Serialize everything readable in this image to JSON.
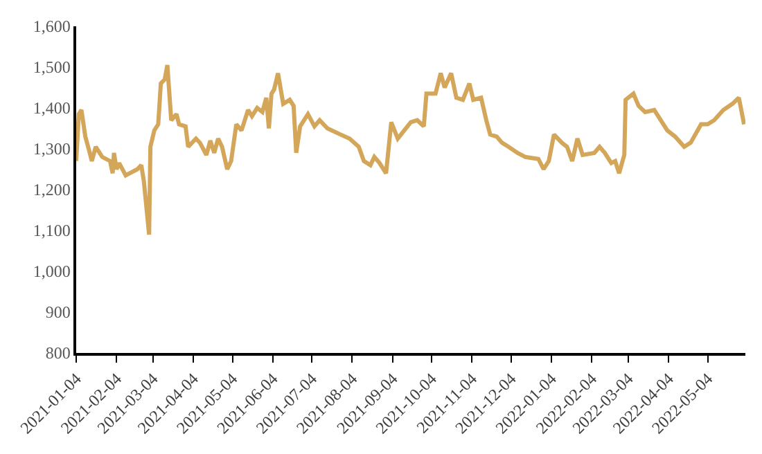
{
  "chart_data": {
    "type": "line",
    "x": [
      "2021-01-04",
      "2021-01-06",
      "2021-01-08",
      "2021-01-11",
      "2021-01-14",
      "2021-01-16",
      "2021-01-19",
      "2021-01-24",
      "2021-01-30",
      "2021-02-01",
      "2021-02-02",
      "2021-02-04",
      "2021-02-06",
      "2021-02-11",
      "2021-02-20",
      "2021-02-23",
      "2021-02-25",
      "2021-03-01",
      "2021-03-02",
      "2021-03-05",
      "2021-03-08",
      "2021-03-10",
      "2021-03-13",
      "2021-03-15",
      "2021-03-18",
      "2021-03-22",
      "2021-03-24",
      "2021-03-29",
      "2021-03-31",
      "2021-04-06",
      "2021-04-09",
      "2021-04-14",
      "2021-04-17",
      "2021-04-20",
      "2021-04-23",
      "2021-04-26",
      "2021-04-30",
      "2021-05-03",
      "2021-05-07",
      "2021-05-11",
      "2021-05-16",
      "2021-05-19",
      "2021-05-23",
      "2021-05-27",
      "2021-05-30",
      "2021-06-01",
      "2021-06-03",
      "2021-06-05",
      "2021-06-08",
      "2021-06-12",
      "2021-06-17",
      "2021-06-20",
      "2021-06-22",
      "2021-06-25",
      "2021-07-01",
      "2021-07-06",
      "2021-07-10",
      "2021-07-16",
      "2021-07-26",
      "2021-08-02",
      "2021-08-09",
      "2021-08-13",
      "2021-08-18",
      "2021-08-21",
      "2021-08-25",
      "2021-08-30",
      "2021-09-03",
      "2021-09-08",
      "2021-09-13",
      "2021-09-18",
      "2021-09-23",
      "2021-09-28",
      "2021-09-30",
      "2021-10-07",
      "2021-10-11",
      "2021-10-14",
      "2021-10-19",
      "2021-10-23",
      "2021-10-28",
      "2021-11-02",
      "2021-11-05",
      "2021-11-11",
      "2021-11-15",
      "2021-11-18",
      "2021-11-23",
      "2021-11-27",
      "2021-12-02",
      "2021-12-09",
      "2021-12-15",
      "2021-12-25",
      "2021-12-29",
      "2022-01-02",
      "2022-01-06",
      "2022-01-12",
      "2022-01-16",
      "2022-01-20",
      "2022-01-24",
      "2022-01-28",
      "2022-02-06",
      "2022-02-10",
      "2022-02-14",
      "2022-02-19",
      "2022-02-22",
      "2022-02-25",
      "2022-03-01",
      "2022-03-02",
      "2022-03-08",
      "2022-03-12",
      "2022-03-17",
      "2022-03-24",
      "2022-03-29",
      "2022-04-03",
      "2022-04-09",
      "2022-04-16",
      "2022-04-21",
      "2022-04-29",
      "2022-05-04",
      "2022-05-09",
      "2022-05-16",
      "2022-05-23",
      "2022-05-28",
      "2022-06-01"
    ],
    "series": [
      {
        "color": "#d4a65a",
        "values": [
          1270,
          1385,
          1395,
          1330,
          1295,
          1270,
          1305,
          1280,
          1270,
          1240,
          1290,
          1250,
          1265,
          1235,
          1250,
          1260,
          1220,
          1090,
          1305,
          1345,
          1360,
          1460,
          1470,
          1505,
          1370,
          1385,
          1360,
          1355,
          1305,
          1325,
          1315,
          1285,
          1320,
          1290,
          1325,
          1305,
          1250,
          1270,
          1360,
          1345,
          1395,
          1380,
          1400,
          1390,
          1425,
          1350,
          1435,
          1445,
          1485,
          1410,
          1420,
          1405,
          1290,
          1355,
          1385,
          1355,
          1370,
          1350,
          1335,
          1325,
          1305,
          1270,
          1260,
          1280,
          1265,
          1240,
          1365,
          1325,
          1345,
          1365,
          1370,
          1355,
          1435,
          1435,
          1485,
          1450,
          1485,
          1425,
          1420,
          1460,
          1420,
          1425,
          1370,
          1335,
          1330,
          1315,
          1305,
          1290,
          1280,
          1275,
          1250,
          1270,
          1335,
          1315,
          1305,
          1270,
          1325,
          1285,
          1290,
          1305,
          1290,
          1265,
          1270,
          1240,
          1285,
          1420,
          1435,
          1405,
          1390,
          1395,
          1370,
          1345,
          1330,
          1305,
          1315,
          1360,
          1360,
          1370,
          1395,
          1410,
          1425,
          1360
        ]
      }
    ],
    "xlim": [
      "2021-01-04",
      "2022-06-02"
    ],
    "xticks": [
      {
        "value": "2021-01-04",
        "label": "2021-01-04"
      },
      {
        "value": "2021-02-04",
        "label": "2021-02-04"
      },
      {
        "value": "2021-03-04",
        "label": "2021-03-04"
      },
      {
        "value": "2021-04-04",
        "label": "2021-04-04"
      },
      {
        "value": "2021-05-04",
        "label": "2021-05-04"
      },
      {
        "value": "2021-06-04",
        "label": "2021-06-04"
      },
      {
        "value": "2021-07-04",
        "label": "2021-07-04"
      },
      {
        "value": "2021-08-04",
        "label": "2021-08-04"
      },
      {
        "value": "2021-09-04",
        "label": "2021-09-04"
      },
      {
        "value": "2021-10-04",
        "label": "2021-10-04"
      },
      {
        "value": "2021-11-04",
        "label": "2021-11-04"
      },
      {
        "value": "2021-12-04",
        "label": "2021-12-04"
      },
      {
        "value": "2022-01-04",
        "label": "2022-01-04"
      },
      {
        "value": "2022-02-04",
        "label": "2022-02-04"
      },
      {
        "value": "2022-03-04",
        "label": "2022-03-04"
      },
      {
        "value": "2022-04-04",
        "label": "2022-04-04"
      },
      {
        "value": "2022-05-04",
        "label": "2022-05-04"
      }
    ],
    "ylim": [
      800,
      1600
    ],
    "yticks": [
      {
        "value": 800,
        "label": "800"
      },
      {
        "value": 900,
        "label": "900"
      },
      {
        "value": 1000,
        "label": "1,000"
      },
      {
        "value": 1100,
        "label": "1,100"
      },
      {
        "value": 1200,
        "label": "1,200"
      },
      {
        "value": 1300,
        "label": "1,300"
      },
      {
        "value": 1400,
        "label": "1,400"
      },
      {
        "value": 1500,
        "label": "1,500"
      },
      {
        "value": 1600,
        "label": "1,600"
      }
    ],
    "grid": false,
    "legend": false,
    "marker": "none",
    "line_style": "solid"
  }
}
